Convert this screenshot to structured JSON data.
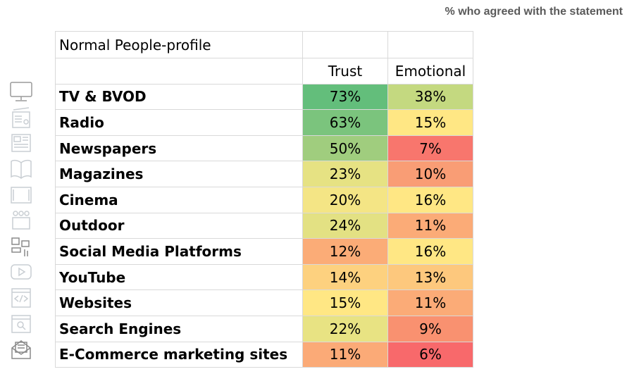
{
  "note": "% who agreed with the statement",
  "table": {
    "title": "Normal People-profile",
    "headers": [
      "Trust",
      "Emotional"
    ],
    "rows": [
      {
        "label": "TV & BVOD",
        "icon": "tv-icon",
        "trust": "73%",
        "emotional": "38%",
        "trust_color": "#63be7b",
        "emotional_color": "#c4d980"
      },
      {
        "label": "Radio",
        "icon": "radio-icon",
        "trust": "63%",
        "emotional": "15%",
        "trust_color": "#7bc47d",
        "emotional_color": "#ffe784"
      },
      {
        "label": "Newspapers",
        "icon": "newspaper-icon",
        "trust": "50%",
        "emotional": "7%",
        "trust_color": "#a0cd7e",
        "emotional_color": "#f8766d"
      },
      {
        "label": "Magazines",
        "icon": "magazine-icon",
        "trust": "23%",
        "emotional": "10%",
        "trust_color": "#e6e283",
        "emotional_color": "#f99d75"
      },
      {
        "label": "Cinema",
        "icon": "cinema-icon",
        "trust": "20%",
        "emotional": "16%",
        "trust_color": "#f4e585",
        "emotional_color": "#ffe784"
      },
      {
        "label": "Outdoor",
        "icon": "outdoor-icon",
        "trust": "24%",
        "emotional": "11%",
        "trust_color": "#e3e183",
        "emotional_color": "#fbab77"
      },
      {
        "label": "Social Media Platforms",
        "icon": "social-media-icon",
        "trust": "12%",
        "emotional": "16%",
        "trust_color": "#fbac77",
        "emotional_color": "#ffe784"
      },
      {
        "label": "YouTube",
        "icon": "youtube-icon",
        "trust": "14%",
        "emotional": "13%",
        "trust_color": "#fdd17f",
        "emotional_color": "#fdc87d"
      },
      {
        "label": "Websites",
        "icon": "website-icon",
        "trust": "15%",
        "emotional": "11%",
        "trust_color": "#ffe784",
        "emotional_color": "#fbab77"
      },
      {
        "label": "Search Engines",
        "icon": "search-engine-icon",
        "trust": "22%",
        "emotional": "9%",
        "trust_color": "#e8e383",
        "emotional_color": "#f99170"
      },
      {
        "label": "E-Commerce marketing sites",
        "icon": "email-icon",
        "trust": "11%",
        "emotional": "6%",
        "trust_color": "#fbaa77",
        "emotional_color": "#f8696b"
      }
    ]
  }
}
